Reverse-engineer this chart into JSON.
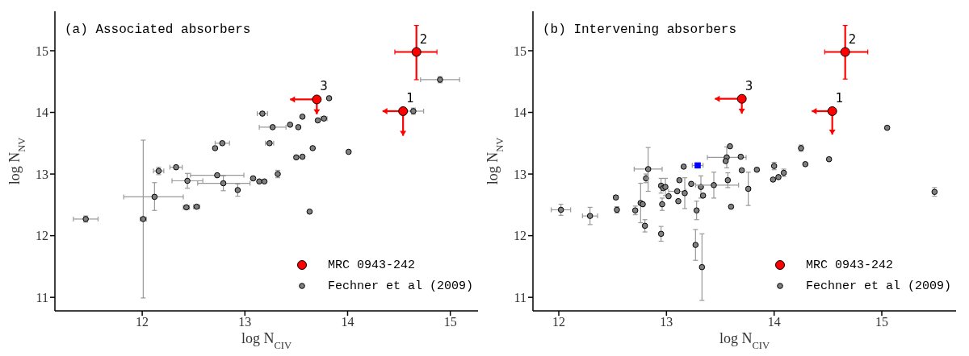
{
  "chart_data": [
    {
      "type": "scatter",
      "title": "(a) Associated absorbers",
      "xlabel": "log N$_{CIV}$",
      "ylabel": "log N$_{NV}$",
      "xlim": [
        11.15,
        15.27
      ],
      "ylim": [
        10.78,
        15.64
      ],
      "xticks": [
        12,
        13,
        14,
        15
      ],
      "yticks": [
        11,
        12,
        13,
        14,
        15
      ],
      "marker": "circle",
      "legend": "bottom right",
      "annotations": [
        {
          "text": "1",
          "x": 14.54,
          "y": 14.02
        },
        {
          "text": "2",
          "x": 14.67,
          "y": 14.98
        },
        {
          "text": "3",
          "x": 13.7,
          "y": 14.21
        }
      ],
      "series": [
        {
          "name": "MRC 0943-242",
          "color": "#ff0000",
          "x": [
            14.54,
            14.67,
            13.7
          ],
          "values": [
            14.02,
            14.98,
            14.21
          ],
          "xerrors": [
            [
              14.34,
              14.54
            ],
            [
              14.46,
              14.87
            ],
            [
              13.44,
              13.7
            ]
          ],
          "errors": [
            [
              13.62,
              14.02
            ],
            [
              14.53,
              15.41
            ],
            [
              13.97,
              14.21
            ]
          ]
        },
        {
          "name": "Fechner et al (2009)",
          "color": "#808080",
          "x": [
            11.45,
            12.01,
            12.12,
            12.16,
            12.33,
            12.44,
            12.43,
            12.53,
            12.71,
            12.78,
            12.73,
            12.79,
            12.93,
            13.08,
            13.14,
            13.19,
            13.17,
            13.27,
            13.24,
            13.32,
            13.44,
            13.52,
            13.56,
            13.5,
            13.56,
            13.66,
            13.63,
            13.71,
            13.77,
            13.82,
            14.01,
            14.64,
            14.9
          ],
          "values": [
            12.27,
            12.27,
            12.63,
            13.05,
            13.11,
            12.89,
            12.46,
            12.47,
            13.42,
            13.5,
            12.98,
            12.85,
            12.74,
            12.93,
            12.88,
            12.88,
            13.98,
            13.76,
            13.5,
            13.0,
            13.8,
            13.76,
            13.93,
            13.27,
            13.28,
            13.42,
            12.39,
            13.87,
            13.9,
            14.23,
            13.36,
            14.02,
            14.53
          ],
          "xerrors": [
            0.12,
            0.03,
            [
              11.82,
              12.4
            ],
            0.05,
            0.06,
            0.15,
            0.03,
            0.03,
            null,
            0.07,
            [
              12.47,
              12.99
            ],
            [
              12.54,
              13.05
            ],
            null,
            null,
            null,
            null,
            0.05,
            0.13,
            0.04,
            null,
            null,
            null,
            null,
            null,
            null,
            null,
            null,
            null,
            0.03,
            null,
            null,
            0.1,
            0.19
          ],
          "errors": [
            0.05,
            [
              10.99,
              13.55
            ],
            [
              12.41,
              12.86
            ],
            0.06,
            null,
            0.12,
            null,
            null,
            null,
            null,
            null,
            0.12,
            0.1,
            null,
            null,
            null,
            null,
            null,
            null,
            0.06,
            null,
            null,
            null,
            null,
            null,
            null,
            null,
            null,
            null,
            null,
            null,
            0.05,
            0.05
          ]
        }
      ]
    },
    {
      "type": "scatter",
      "title": "(b) Intervening absorbers",
      "xlabel": "log N$_{CIV}$",
      "ylabel": "log N$_{NV}$",
      "xlim": [
        11.76,
        15.69
      ],
      "ylim": [
        10.78,
        15.64
      ],
      "xticks": [
        12,
        13,
        14,
        15
      ],
      "yticks": [
        11,
        12,
        13,
        14,
        15
      ],
      "marker": "circle",
      "legend": "bottom right",
      "annotations": [
        {
          "text": "1",
          "x": 14.54,
          "y": 14.02
        },
        {
          "text": "2",
          "x": 14.66,
          "y": 14.98
        },
        {
          "text": "3",
          "x": 13.7,
          "y": 14.22
        }
      ],
      "series": [
        {
          "name": "MRC 0943-242",
          "color": "#ff0000",
          "x": [
            14.54,
            14.66,
            13.7
          ],
          "values": [
            14.02,
            14.98,
            14.22
          ],
          "xerrors": [
            [
              14.35,
              14.54
            ],
            [
              14.47,
              14.87
            ],
            [
              13.45,
              13.7
            ]
          ],
          "errors": [
            [
              13.64,
              14.02
            ],
            [
              14.54,
              15.41
            ],
            [
              13.98,
              14.22
            ]
          ]
        },
        {
          "name": "Fechner et al (2009)",
          "color": "#808080",
          "x": [
            12.02,
            12.29,
            12.53,
            12.54,
            12.71,
            12.76,
            12.78,
            12.8,
            12.81,
            12.83,
            12.95,
            12.95,
            12.96,
            12.97,
            12.99,
            13.02,
            13.1,
            13.11,
            13.12,
            13.16,
            13.17,
            13.23,
            13.28,
            13.27,
            13.32,
            13.33,
            13.34,
            13.44,
            13.56,
            13.55,
            13.59,
            13.57,
            13.6,
            13.69,
            13.7,
            13.76,
            13.84,
            13.99,
            14.0,
            14.04,
            14.09,
            14.25,
            14.29,
            14.51,
            15.05,
            15.49
          ],
          "values": [
            12.42,
            12.32,
            12.62,
            12.42,
            12.41,
            12.53,
            12.51,
            12.16,
            12.93,
            13.08,
            12.03,
            12.81,
            12.51,
            12.77,
            12.79,
            12.64,
            12.72,
            12.56,
            12.9,
            13.12,
            12.69,
            12.84,
            12.41,
            11.85,
            12.79,
            11.49,
            12.65,
            12.82,
            13.27,
            13.21,
            13.45,
            12.9,
            12.47,
            13.28,
            13.06,
            12.76,
            13.07,
            12.91,
            13.13,
            12.95,
            13.02,
            13.42,
            13.16,
            13.24,
            13.75,
            12.71
          ],
          "xerrors": [
            0.09,
            0.07,
            null,
            null,
            null,
            null,
            null,
            null,
            null,
            0.13,
            null,
            null,
            null,
            null,
            null,
            null,
            0.08,
            null,
            null,
            null,
            null,
            null,
            null,
            null,
            null,
            null,
            null,
            [
              13.27,
              13.67
            ],
            0.18,
            null,
            null,
            null,
            null,
            null,
            null,
            null,
            null,
            null,
            null,
            null,
            null,
            null,
            null,
            null,
            null,
            null
          ],
          "errors": [
            0.09,
            0.14,
            0.03,
            0.05,
            0.07,
            0.32,
            null,
            0.1,
            0.07,
            [
              12.72,
              13.43
            ],
            0.12,
            0.12,
            0.1,
            null,
            0.14,
            null,
            null,
            null,
            null,
            null,
            0.25,
            null,
            0.15,
            0.25,
            0.18,
            [
              10.95,
              12.03
            ],
            null,
            0.21,
            0.17,
            null,
            null,
            0.12,
            null,
            null,
            null,
            0.27,
            null,
            null,
            0.06,
            null,
            0.06,
            0.05,
            null,
            null,
            null,
            0.07
          ]
        },
        {
          "color": "#0000ff",
          "marker": "square",
          "x": [
            13.29
          ],
          "values": [
            13.14
          ],
          "xerrors": [
            0.05
          ]
        }
      ]
    }
  ]
}
